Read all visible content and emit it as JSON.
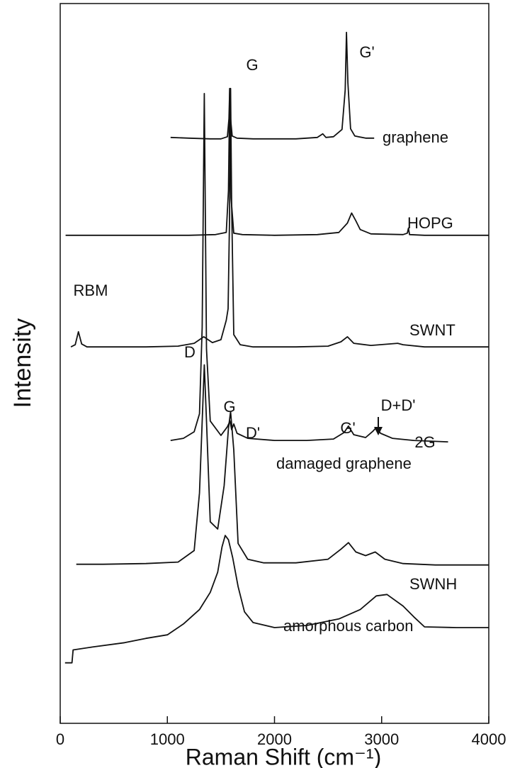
{
  "chart_data": {
    "type": "line",
    "xlabel": "Raman Shift (cm⁻¹)",
    "ylabel": "Intensity",
    "xlim": [
      0,
      4000
    ],
    "xticks": [
      0,
      1000,
      2000,
      3000,
      4000
    ],
    "ylim": [
      0,
      100
    ],
    "series": [
      {
        "name": "graphene",
        "color": "#111111",
        "x": [
          1030,
          1200,
          1400,
          1500,
          1560,
          1575,
          1582,
          1590,
          1605,
          1650,
          1800,
          2000,
          2200,
          2400,
          2450,
          2480,
          2550,
          2630,
          2660,
          2672,
          2685,
          2710,
          2750,
          2850,
          2930
        ],
        "values": [
          81.4,
          81.3,
          81.2,
          81.2,
          81.5,
          84,
          88.2,
          84,
          81.6,
          81.3,
          81.2,
          81.2,
          81.2,
          81.4,
          81.9,
          81.4,
          81.5,
          82.5,
          88,
          96,
          89,
          82.6,
          81.6,
          81.3,
          81.3
        ]
      },
      {
        "name": "HOPG",
        "color": "#111111",
        "x": [
          50,
          300,
          600,
          900,
          1200,
          1450,
          1550,
          1570,
          1582,
          1595,
          1620,
          1700,
          2000,
          2400,
          2600,
          2680,
          2720,
          2760,
          2800,
          2900,
          3200,
          3240,
          3250,
          3260,
          3400,
          3700,
          4000
        ],
        "values": [
          67.8,
          67.8,
          67.8,
          67.8,
          67.8,
          67.9,
          68.2,
          74,
          88.2,
          73,
          68.1,
          67.9,
          67.8,
          67.9,
          68.2,
          69.5,
          70.9,
          69.8,
          68.6,
          68,
          67.9,
          68.1,
          68.8,
          67.9,
          67.8,
          67.8,
          67.8
        ]
      },
      {
        "name": "SWNT",
        "color": "#111111",
        "x": [
          100,
          140,
          170,
          200,
          250,
          500,
          800,
          1100,
          1250,
          1340,
          1420,
          1500,
          1550,
          1567,
          1580,
          1590,
          1600,
          1620,
          1680,
          1800,
          2200,
          2500,
          2620,
          2680,
          2740,
          2900,
          3150,
          3200,
          3400,
          4000
        ],
        "values": [
          52.3,
          52.6,
          54.4,
          52.7,
          52.3,
          52.3,
          52.3,
          52.4,
          52.8,
          53.7,
          52.9,
          53.3,
          56,
          57.6,
          70,
          88.2,
          72,
          54,
          52.6,
          52.3,
          52.3,
          52.4,
          53,
          53.7,
          52.8,
          52.5,
          52.8,
          52.6,
          52.3,
          52.3
        ]
      },
      {
        "name": "damaged graphene",
        "color": "#111111",
        "x": [
          1030,
          1150,
          1250,
          1300,
          1325,
          1345,
          1365,
          1400,
          1500,
          1560,
          1585,
          1600,
          1620,
          1650,
          1750,
          2000,
          2300,
          2550,
          2650,
          2690,
          2740,
          2850,
          2920,
          2950,
          2990,
          3100,
          3300,
          3620
        ],
        "values": [
          39.3,
          39.6,
          40.5,
          43,
          55,
          87.5,
          52,
          42,
          40,
          41.2,
          42,
          40.8,
          41.6,
          40.3,
          39.6,
          39.3,
          39.3,
          39.5,
          40.4,
          41.3,
          40.1,
          39.7,
          40.6,
          41.1,
          40.3,
          39.6,
          39.3,
          39.1
        ]
      },
      {
        "name": "SWNH",
        "color": "#111111",
        "x": [
          150,
          400,
          800,
          1100,
          1250,
          1300,
          1330,
          1345,
          1365,
          1400,
          1470,
          1530,
          1570,
          1590,
          1620,
          1660,
          1750,
          1900,
          2200,
          2500,
          2620,
          2690,
          2760,
          2850,
          2940,
          3030,
          3200,
          3500,
          4000
        ],
        "values": [
          22.1,
          22.1,
          22.2,
          22.4,
          24,
          32,
          44,
          49.8,
          42,
          28,
          27,
          33,
          41,
          43.3,
          38,
          25,
          22.8,
          22.3,
          22.3,
          22.8,
          24.2,
          25.1,
          23.8,
          23.3,
          23.8,
          22.8,
          22.2,
          22,
          22
        ]
      },
      {
        "name": "amorphous carbon",
        "color": "#111111",
        "x": [
          45,
          110,
          120,
          300,
          600,
          800,
          1000,
          1150,
          1300,
          1400,
          1470,
          1510,
          1540,
          1570,
          1610,
          1660,
          1720,
          1800,
          2000,
          2300,
          2600,
          2800,
          2950,
          3050,
          3200,
          3300,
          3400,
          3700,
          4000
        ],
        "values": [
          8.4,
          8.4,
          10.2,
          10.6,
          11.2,
          11.8,
          12.3,
          13.8,
          15.8,
          18.2,
          21,
          24.5,
          26.1,
          25.5,
          23,
          19,
          15.5,
          14,
          13.3,
          13.6,
          14.5,
          15.8,
          17.7,
          17.9,
          16.3,
          14.8,
          13.4,
          13.3,
          13.3
        ]
      }
    ],
    "annotations": [
      "G",
      "G'",
      "RBM",
      "D",
      "G",
      "D'",
      "G'",
      "D+D'",
      "2G"
    ]
  }
}
